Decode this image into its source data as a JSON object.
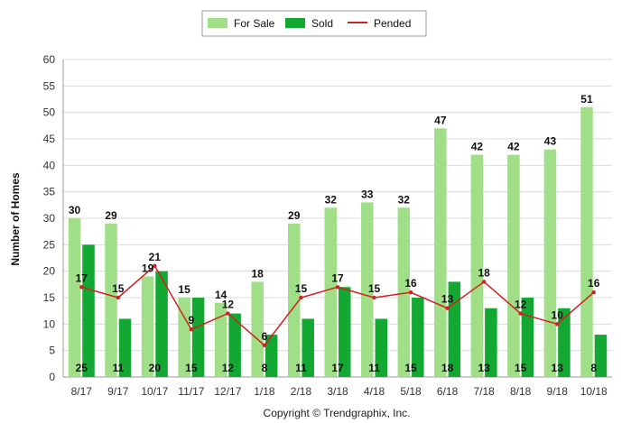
{
  "chart_data": {
    "type": "bar",
    "categories": [
      "8/17",
      "9/17",
      "10/17",
      "11/17",
      "12/17",
      "1/18",
      "2/18",
      "3/18",
      "4/18",
      "5/18",
      "6/18",
      "7/18",
      "8/18",
      "9/18",
      "10/18"
    ],
    "series": [
      {
        "name": "For Sale",
        "kind": "bar",
        "color": "#a0df88",
        "values": [
          30,
          29,
          19,
          15,
          14,
          18,
          29,
          32,
          33,
          32,
          47,
          42,
          42,
          43,
          51
        ]
      },
      {
        "name": "Sold",
        "kind": "bar",
        "color": "#12a832",
        "values": [
          25,
          11,
          20,
          15,
          12,
          8,
          11,
          17,
          11,
          15,
          18,
          13,
          15,
          13,
          8
        ]
      },
      {
        "name": "Pended",
        "kind": "line",
        "color": "#d22020",
        "values": [
          17,
          15,
          21,
          9,
          12,
          6,
          15,
          17,
          15,
          16,
          13,
          18,
          12,
          10,
          16
        ]
      }
    ],
    "ylabel": "Number of Homes",
    "xlabel": "",
    "ylim": [
      0,
      60
    ],
    "yticks": [
      0,
      5,
      10,
      15,
      20,
      25,
      30,
      35,
      40,
      45,
      50,
      55,
      60
    ],
    "grid": true,
    "legend_position": "top-center"
  },
  "footer": {
    "copyright": "Copyright © Trendgraphix, Inc."
  }
}
